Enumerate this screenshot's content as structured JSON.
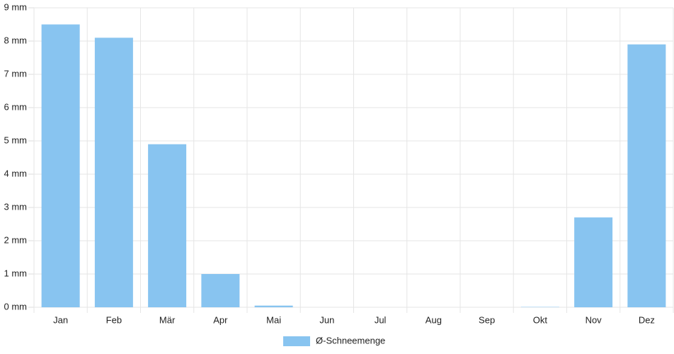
{
  "chart_data": {
    "type": "bar",
    "categories": [
      "Jan",
      "Feb",
      "Mär",
      "Apr",
      "Mai",
      "Jun",
      "Jul",
      "Aug",
      "Sep",
      "Okt",
      "Nov",
      "Dez"
    ],
    "series": [
      {
        "name": "Ø-Schneemenge",
        "color": "#88c4f0",
        "values": [
          8.5,
          8.1,
          4.9,
          1.0,
          0.05,
          0,
          0,
          0,
          0,
          0.01,
          2.7,
          7.9
        ]
      }
    ],
    "ylim": [
      0,
      9
    ],
    "yticks": [
      {
        "value": 0,
        "label": "0 mm"
      },
      {
        "value": 1,
        "label": "1 mm"
      },
      {
        "value": 2,
        "label": "2 mm"
      },
      {
        "value": 3,
        "label": "3 mm"
      },
      {
        "value": 4,
        "label": "4 mm"
      },
      {
        "value": 5,
        "label": "5 mm"
      },
      {
        "value": 6,
        "label": "6 mm"
      },
      {
        "value": 7,
        "label": "7 mm"
      },
      {
        "value": 8,
        "label": "8 mm"
      },
      {
        "value": 9,
        "label": "9 mm"
      }
    ],
    "grid": true,
    "legend": "bottom"
  }
}
